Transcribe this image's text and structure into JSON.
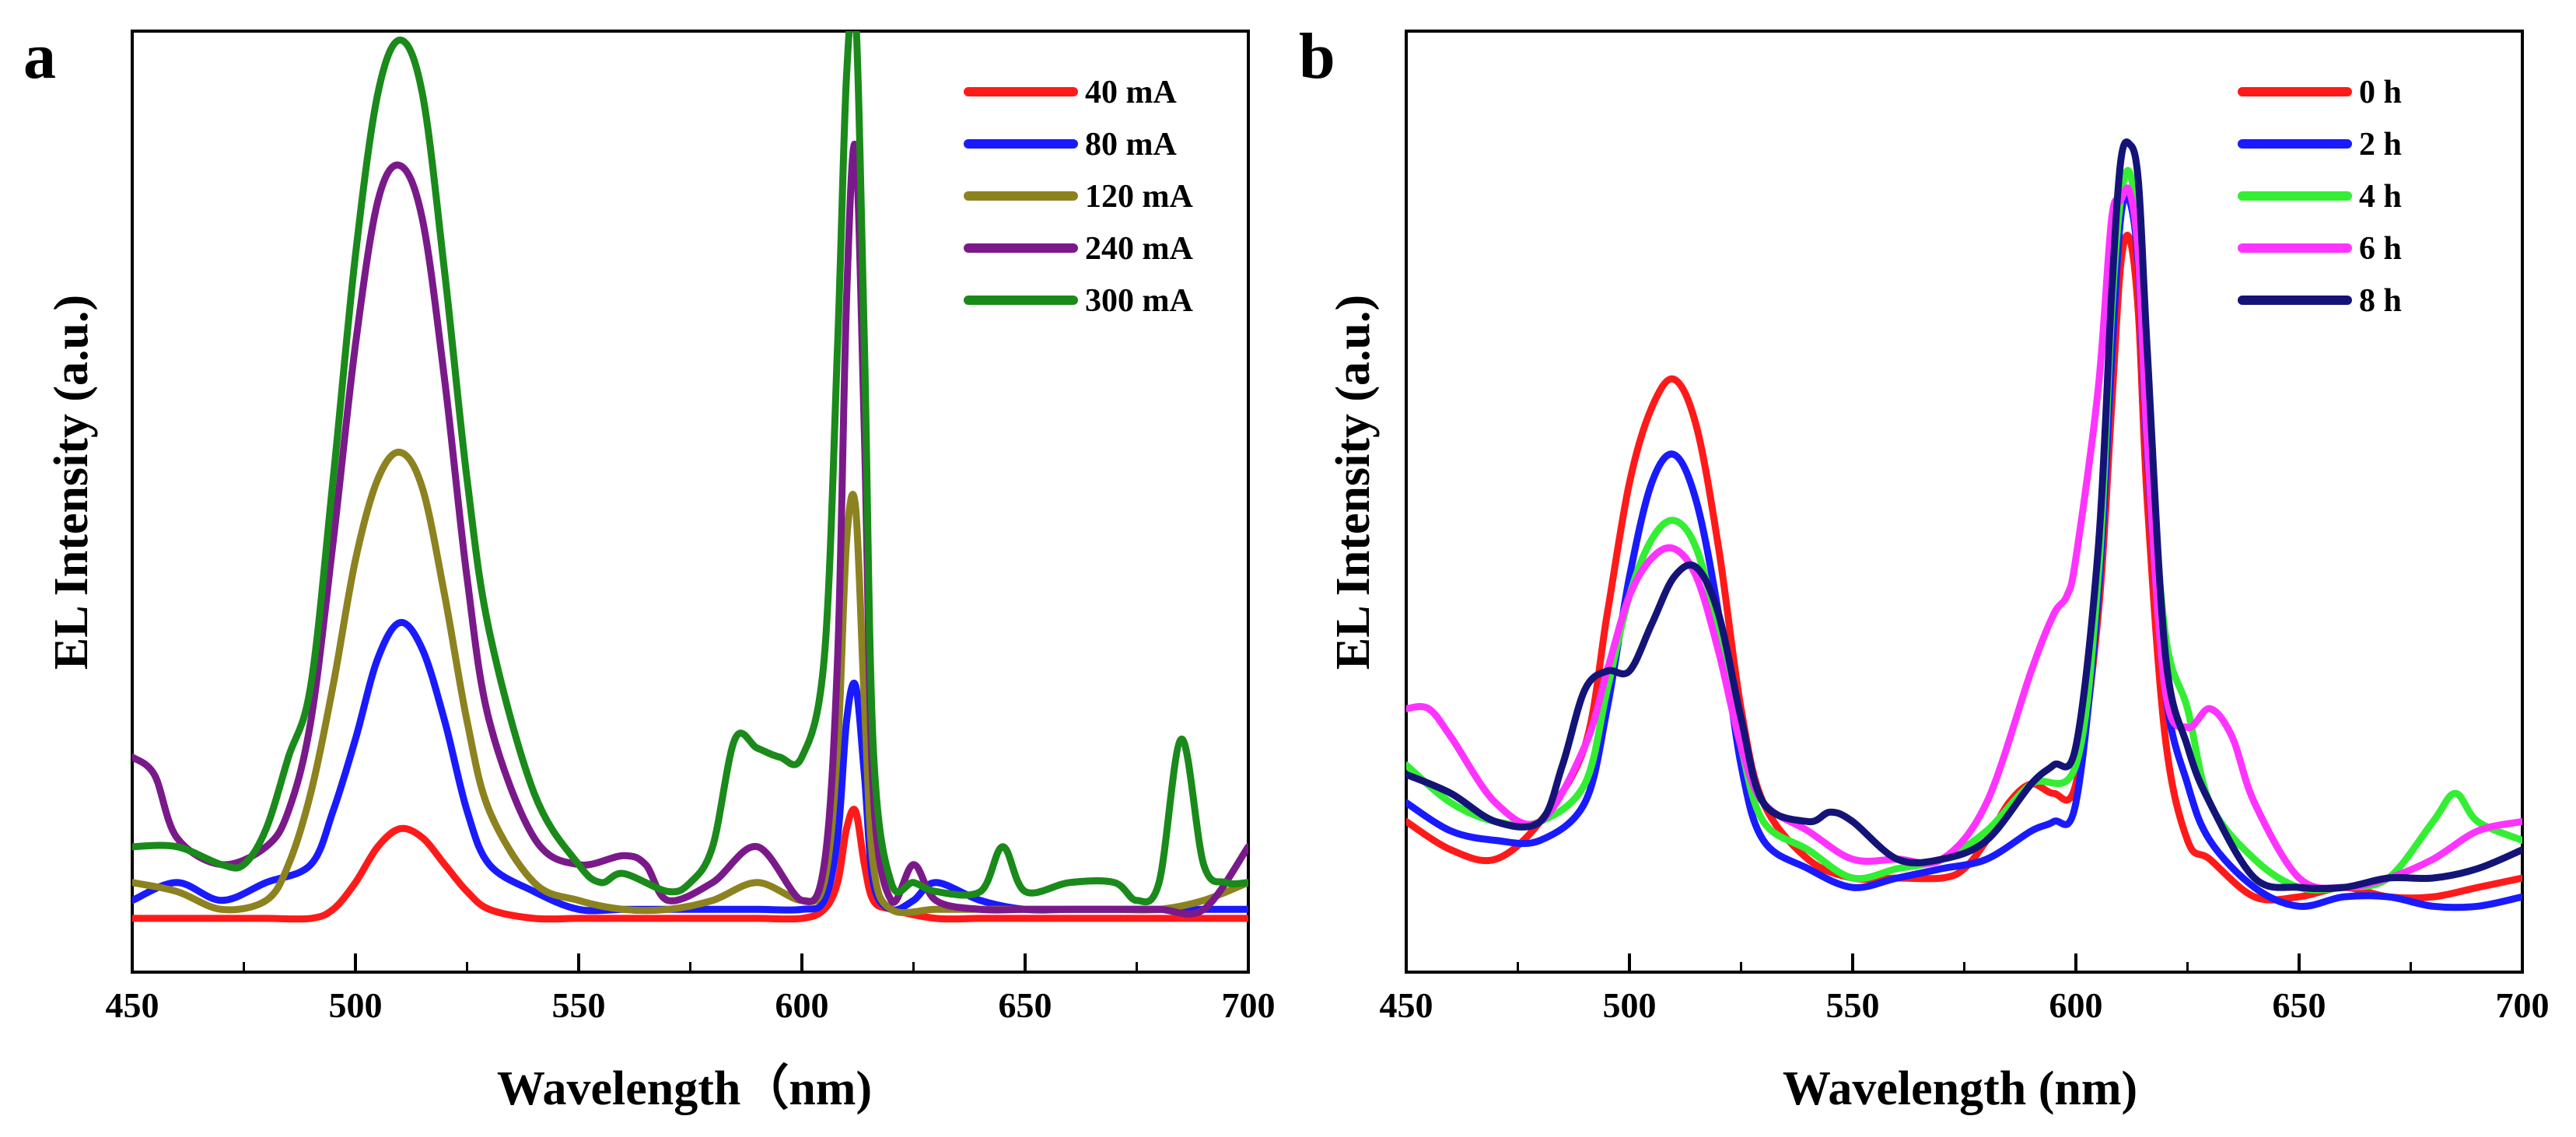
{
  "figure": {
    "panel_a_letter": "a",
    "panel_b_letter": "b"
  },
  "chart_data": [
    {
      "type": "line",
      "panel": "a",
      "title": "",
      "xlabel": "Wavelength（nm)",
      "ylabel": "EL Intensity (a.u.)",
      "xlim": [
        450,
        700
      ],
      "ylim": [
        0,
        1.05
      ],
      "xticks": [
        450,
        500,
        550,
        600,
        650,
        700
      ],
      "xtick_labels": [
        "450",
        "500",
        "550",
        "600",
        "650",
        "700"
      ],
      "y_ticks_shown": false,
      "grid": false,
      "legend_position": "top-right",
      "series": [
        {
          "name": "40 mA",
          "color": "#ff1a1a",
          "x": [
            450,
            460,
            470,
            480,
            490,
            495,
            500,
            505,
            510,
            515,
            520,
            525,
            530,
            540,
            550,
            560,
            570,
            580,
            590,
            600,
            605,
            608,
            610,
            612,
            614,
            616,
            620,
            630,
            640,
            650,
            660,
            670,
            680,
            690,
            700
          ],
          "y": [
            0.06,
            0.06,
            0.06,
            0.06,
            0.06,
            0.07,
            0.1,
            0.14,
            0.16,
            0.15,
            0.12,
            0.09,
            0.07,
            0.06,
            0.06,
            0.06,
            0.06,
            0.06,
            0.06,
            0.06,
            0.07,
            0.1,
            0.16,
            0.18,
            0.12,
            0.08,
            0.07,
            0.06,
            0.06,
            0.06,
            0.06,
            0.06,
            0.06,
            0.06,
            0.06
          ]
        },
        {
          "name": "80 mA",
          "color": "#1a1aff",
          "x": [
            450,
            460,
            470,
            480,
            490,
            495,
            500,
            505,
            510,
            515,
            520,
            525,
            530,
            540,
            550,
            560,
            570,
            580,
            590,
            600,
            605,
            608,
            610,
            612,
            614,
            616,
            620,
            625,
            630,
            640,
            650,
            660,
            670,
            680,
            690,
            700
          ],
          "y": [
            0.08,
            0.1,
            0.08,
            0.1,
            0.12,
            0.18,
            0.26,
            0.35,
            0.39,
            0.36,
            0.28,
            0.18,
            0.12,
            0.09,
            0.07,
            0.07,
            0.07,
            0.07,
            0.07,
            0.07,
            0.08,
            0.15,
            0.28,
            0.32,
            0.22,
            0.1,
            0.07,
            0.08,
            0.1,
            0.08,
            0.07,
            0.07,
            0.07,
            0.07,
            0.07,
            0.07
          ]
        },
        {
          "name": "120 mA",
          "color": "#8c8220",
          "x": [
            450,
            460,
            470,
            480,
            485,
            490,
            495,
            500,
            505,
            510,
            515,
            520,
            525,
            530,
            540,
            550,
            560,
            570,
            580,
            590,
            600,
            605,
            608,
            610,
            612,
            614,
            616,
            620,
            630,
            640,
            650,
            660,
            670,
            680,
            690,
            700
          ],
          "y": [
            0.1,
            0.09,
            0.07,
            0.08,
            0.12,
            0.2,
            0.32,
            0.46,
            0.55,
            0.58,
            0.54,
            0.42,
            0.28,
            0.18,
            0.1,
            0.08,
            0.07,
            0.07,
            0.08,
            0.1,
            0.08,
            0.1,
            0.25,
            0.48,
            0.52,
            0.3,
            0.12,
            0.07,
            0.07,
            0.07,
            0.07,
            0.07,
            0.07,
            0.07,
            0.08,
            0.1
          ]
        },
        {
          "name": "240 mA",
          "color": "#7a1a8a",
          "x": [
            450,
            455,
            460,
            470,
            480,
            485,
            490,
            495,
            500,
            505,
            510,
            515,
            520,
            525,
            530,
            540,
            550,
            560,
            565,
            570,
            580,
            590,
            600,
            605,
            608,
            610,
            612,
            614,
            616,
            620,
            625,
            630,
            640,
            650,
            660,
            670,
            680,
            690,
            700
          ],
          "y": [
            0.24,
            0.22,
            0.15,
            0.12,
            0.14,
            0.18,
            0.28,
            0.48,
            0.7,
            0.86,
            0.9,
            0.84,
            0.66,
            0.44,
            0.28,
            0.15,
            0.12,
            0.13,
            0.12,
            0.08,
            0.1,
            0.14,
            0.08,
            0.12,
            0.35,
            0.75,
            0.92,
            0.6,
            0.2,
            0.08,
            0.12,
            0.08,
            0.07,
            0.07,
            0.07,
            0.07,
            0.07,
            0.07,
            0.14
          ]
        },
        {
          "name": "300 mA",
          "color": "#1a8a1a",
          "x": [
            450,
            460,
            470,
            475,
            480,
            485,
            490,
            495,
            500,
            505,
            510,
            515,
            520,
            525,
            530,
            540,
            550,
            555,
            560,
            570,
            575,
            580,
            585,
            590,
            595,
            600,
            605,
            608,
            610,
            612,
            614,
            616,
            620,
            625,
            630,
            640,
            645,
            650,
            660,
            670,
            675,
            680,
            685,
            690,
            695,
            700
          ],
          "y": [
            0.14,
            0.14,
            0.12,
            0.12,
            0.16,
            0.24,
            0.32,
            0.55,
            0.8,
            0.98,
            1.04,
            0.98,
            0.78,
            0.55,
            0.38,
            0.2,
            0.12,
            0.1,
            0.11,
            0.09,
            0.1,
            0.14,
            0.26,
            0.25,
            0.24,
            0.24,
            0.35,
            0.7,
            1.0,
            1.07,
            0.7,
            0.25,
            0.1,
            0.1,
            0.09,
            0.09,
            0.14,
            0.09,
            0.1,
            0.1,
            0.08,
            0.1,
            0.26,
            0.12,
            0.1,
            0.1
          ]
        }
      ]
    },
    {
      "type": "line",
      "panel": "b",
      "title": "",
      "xlabel": "Wavelength (nm)",
      "ylabel": "EL Intensity (a.u.)",
      "xlim": [
        450,
        700
      ],
      "ylim": [
        0,
        1.0
      ],
      "xticks": [
        450,
        500,
        550,
        600,
        650,
        700
      ],
      "xtick_labels": [
        "450",
        "500",
        "550",
        "600",
        "650",
        "700"
      ],
      "y_ticks_shown": false,
      "grid": false,
      "legend_position": "top-right",
      "series": [
        {
          "name": "0 h",
          "color": "#ff1a1a",
          "x": [
            450,
            460,
            470,
            480,
            490,
            495,
            500,
            505,
            510,
            515,
            520,
            525,
            530,
            540,
            550,
            560,
            570,
            575,
            580,
            585,
            590,
            595,
            600,
            605,
            608,
            610,
            612,
            614,
            616,
            620,
            625,
            630,
            640,
            650,
            660,
            670,
            680,
            690,
            700
          ],
          "y": [
            0.16,
            0.13,
            0.12,
            0.16,
            0.24,
            0.38,
            0.52,
            0.6,
            0.63,
            0.58,
            0.45,
            0.28,
            0.18,
            0.12,
            0.1,
            0.1,
            0.1,
            0.11,
            0.14,
            0.18,
            0.2,
            0.19,
            0.2,
            0.38,
            0.6,
            0.75,
            0.78,
            0.7,
            0.5,
            0.25,
            0.14,
            0.12,
            0.08,
            0.08,
            0.09,
            0.08,
            0.08,
            0.09,
            0.1
          ]
        },
        {
          "name": "2 h",
          "color": "#1a1aff",
          "x": [
            450,
            460,
            470,
            480,
            490,
            495,
            500,
            505,
            510,
            515,
            520,
            525,
            530,
            540,
            550,
            560,
            570,
            580,
            590,
            595,
            600,
            605,
            608,
            610,
            612,
            614,
            616,
            620,
            625,
            630,
            640,
            650,
            660,
            670,
            680,
            690,
            700
          ],
          "y": [
            0.18,
            0.15,
            0.14,
            0.14,
            0.18,
            0.28,
            0.42,
            0.52,
            0.55,
            0.5,
            0.38,
            0.22,
            0.14,
            0.11,
            0.09,
            0.1,
            0.11,
            0.12,
            0.15,
            0.16,
            0.18,
            0.4,
            0.65,
            0.8,
            0.82,
            0.75,
            0.55,
            0.3,
            0.2,
            0.14,
            0.09,
            0.07,
            0.08,
            0.08,
            0.07,
            0.07,
            0.08
          ]
        },
        {
          "name": "4 h",
          "color": "#33ee33",
          "x": [
            450,
            460,
            470,
            480,
            490,
            495,
            500,
            505,
            510,
            515,
            520,
            525,
            530,
            540,
            550,
            560,
            570,
            580,
            590,
            600,
            605,
            608,
            610,
            612,
            614,
            616,
            620,
            625,
            630,
            640,
            650,
            660,
            670,
            680,
            685,
            690,
            700
          ],
          "y": [
            0.22,
            0.18,
            0.16,
            0.16,
            0.2,
            0.3,
            0.4,
            0.46,
            0.48,
            0.45,
            0.36,
            0.24,
            0.16,
            0.13,
            0.1,
            0.11,
            0.12,
            0.15,
            0.2,
            0.22,
            0.42,
            0.7,
            0.82,
            0.85,
            0.78,
            0.6,
            0.36,
            0.28,
            0.18,
            0.12,
            0.09,
            0.09,
            0.1,
            0.16,
            0.19,
            0.16,
            0.14
          ]
        },
        {
          "name": "6 h",
          "color": "#ff33ff",
          "x": [
            450,
            455,
            460,
            470,
            480,
            490,
            495,
            500,
            505,
            510,
            515,
            520,
            525,
            530,
            540,
            550,
            560,
            570,
            580,
            590,
            595,
            598,
            600,
            605,
            608,
            610,
            612,
            614,
            616,
            620,
            625,
            630,
            635,
            640,
            650,
            660,
            670,
            680,
            690,
            700
          ],
          "y": [
            0.28,
            0.28,
            0.25,
            0.18,
            0.16,
            0.24,
            0.32,
            0.4,
            0.44,
            0.45,
            0.42,
            0.34,
            0.24,
            0.18,
            0.15,
            0.12,
            0.12,
            0.12,
            0.18,
            0.32,
            0.38,
            0.4,
            0.44,
            0.62,
            0.8,
            0.82,
            0.83,
            0.76,
            0.56,
            0.3,
            0.26,
            0.28,
            0.25,
            0.18,
            0.1,
            0.09,
            0.1,
            0.12,
            0.15,
            0.16
          ]
        },
        {
          "name": "8 h",
          "color": "#141478",
          "x": [
            450,
            460,
            470,
            480,
            485,
            490,
            495,
            500,
            505,
            510,
            515,
            520,
            525,
            530,
            540,
            545,
            550,
            560,
            570,
            580,
            590,
            595,
            600,
            605,
            608,
            610,
            612,
            614,
            616,
            620,
            625,
            630,
            640,
            650,
            660,
            670,
            680,
            690,
            700
          ],
          "y": [
            0.21,
            0.19,
            0.16,
            0.16,
            0.22,
            0.3,
            0.32,
            0.32,
            0.37,
            0.42,
            0.43,
            0.38,
            0.27,
            0.18,
            0.16,
            0.17,
            0.16,
            0.12,
            0.12,
            0.14,
            0.2,
            0.22,
            0.24,
            0.45,
            0.72,
            0.86,
            0.88,
            0.84,
            0.66,
            0.34,
            0.24,
            0.18,
            0.1,
            0.09,
            0.09,
            0.1,
            0.1,
            0.11,
            0.13
          ]
        }
      ]
    }
  ]
}
